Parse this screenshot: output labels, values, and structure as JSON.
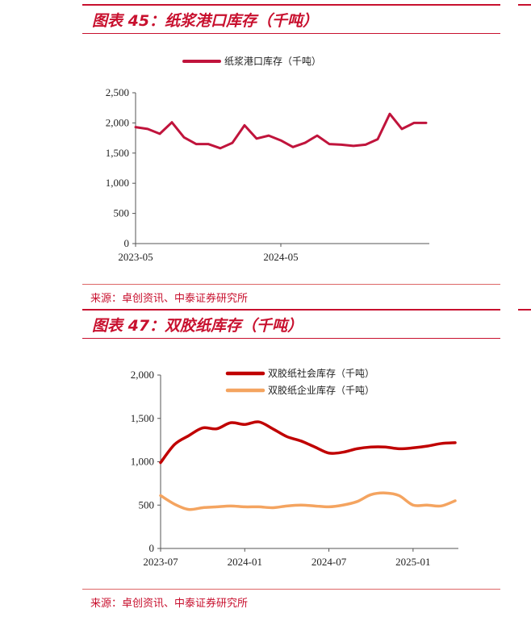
{
  "panel1": {
    "title": "图表 45：纸浆港口库存（千吨）",
    "source": "来源：卓创资讯、中泰证券研究所"
  },
  "panel2": {
    "title": "图表 47：双胶纸库存（千吨）",
    "source": "来源：卓创资讯、中泰证券研究所"
  },
  "colors": {
    "accent": "#c8102e",
    "series_pulp": "#c0143c",
    "series_social": "#c00000",
    "series_enterprise": "#f4a460"
  },
  "chart_data": [
    {
      "type": "line",
      "title": "",
      "xlabel": "",
      "ylabel": "",
      "ylim": [
        0,
        2500
      ],
      "yticks": [
        "0",
        "500",
        "1,000",
        "1,500",
        "2,000",
        "2,500"
      ],
      "xtick_labels": [
        "2023-05",
        "2024-05"
      ],
      "legend_position": "top",
      "x": [
        "2023-05",
        "2023-06",
        "2023-07",
        "2023-08",
        "2023-09",
        "2023-10",
        "2023-11",
        "2023-12",
        "2024-01",
        "2024-02",
        "2024-03",
        "2024-04",
        "2024-05",
        "2024-06",
        "2024-07",
        "2024-08",
        "2024-09",
        "2024-10",
        "2024-11",
        "2024-12",
        "2025-01",
        "2025-02",
        "2025-03",
        "2025-04",
        "2025-05"
      ],
      "series": [
        {
          "name": "纸浆港口库存（千吨）",
          "values": [
            1930,
            1900,
            1820,
            2010,
            1760,
            1650,
            1650,
            1580,
            1670,
            1960,
            1740,
            1790,
            1710,
            1600,
            1670,
            1790,
            1650,
            1640,
            1620,
            1640,
            1730,
            2150,
            1900,
            2000,
            2000
          ]
        }
      ]
    },
    {
      "type": "line",
      "title": "",
      "xlabel": "",
      "ylabel": "",
      "ylim": [
        0,
        2000
      ],
      "yticks": [
        "0",
        "500",
        "1,000",
        "1,500",
        "2,000"
      ],
      "xtick_labels": [
        "2023-07",
        "2024-01",
        "2024-07",
        "2025-01"
      ],
      "legend_position": "top",
      "x": [
        "2023-07",
        "2023-08",
        "2023-09",
        "2023-10",
        "2023-11",
        "2023-12",
        "2024-01",
        "2024-02",
        "2024-03",
        "2024-04",
        "2024-05",
        "2024-06",
        "2024-07",
        "2024-08",
        "2024-09",
        "2024-10",
        "2024-11",
        "2024-12",
        "2025-01",
        "2025-02",
        "2025-03",
        "2025-04"
      ],
      "series": [
        {
          "name": "双胶纸社会库存（千吨）",
          "values": [
            990,
            1200,
            1300,
            1390,
            1380,
            1450,
            1430,
            1460,
            1380,
            1290,
            1240,
            1170,
            1100,
            1110,
            1150,
            1170,
            1170,
            1150,
            1160,
            1180,
            1210,
            1220
          ]
        },
        {
          "name": "双胶纸企业库存（千吨）",
          "values": [
            610,
            510,
            450,
            470,
            480,
            490,
            480,
            480,
            470,
            490,
            500,
            490,
            480,
            500,
            540,
            620,
            640,
            610,
            500,
            500,
            490,
            550
          ]
        }
      ]
    }
  ]
}
